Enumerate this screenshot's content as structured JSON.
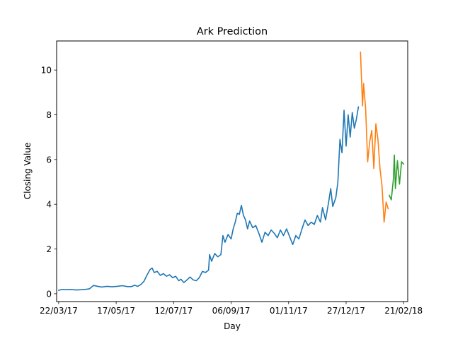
{
  "chart_data": {
    "type": "line",
    "title": "Ark Prediction",
    "xlabel": "Day",
    "ylabel": "Closing Value",
    "x_axis": {
      "type": "date",
      "ticks": [
        "2017-03-22",
        "2017-05-17",
        "2017-07-12",
        "2017-09-06",
        "2017-11-01",
        "2017-12-27",
        "2018-02-21"
      ],
      "tick_labels": [
        "22/03/17",
        "17/05/17",
        "12/07/17",
        "06/09/17",
        "01/11/17",
        "27/12/17",
        "21/02/18"
      ],
      "xlim": [
        "2017-03-20",
        "2018-02-25"
      ]
    },
    "y_axis": {
      "ticks": [
        0,
        2,
        4,
        6,
        8,
        10
      ],
      "tick_labels": [
        "0",
        "2",
        "4",
        "6",
        "8",
        "10"
      ],
      "ylim": [
        -0.35,
        11.3
      ]
    },
    "grid": false,
    "legend": "none",
    "series": [
      {
        "color": "#1f77b4",
        "points": [
          [
            "2017-03-22",
            0.15
          ],
          [
            "2017-03-25",
            0.19
          ],
          [
            "2017-03-29",
            0.18
          ],
          [
            "2017-04-03",
            0.19
          ],
          [
            "2017-04-08",
            0.17
          ],
          [
            "2017-04-13",
            0.18
          ],
          [
            "2017-04-18",
            0.2
          ],
          [
            "2017-04-21",
            0.22
          ],
          [
            "2017-04-23",
            0.3
          ],
          [
            "2017-04-25",
            0.37
          ],
          [
            "2017-04-29",
            0.33
          ],
          [
            "2017-05-03",
            0.3
          ],
          [
            "2017-05-08",
            0.33
          ],
          [
            "2017-05-13",
            0.31
          ],
          [
            "2017-05-18",
            0.33
          ],
          [
            "2017-05-23",
            0.36
          ],
          [
            "2017-05-28",
            0.32
          ],
          [
            "2017-06-01",
            0.32
          ],
          [
            "2017-06-04",
            0.38
          ],
          [
            "2017-06-07",
            0.33
          ],
          [
            "2017-06-10",
            0.41
          ],
          [
            "2017-06-13",
            0.55
          ],
          [
            "2017-06-16",
            0.83
          ],
          [
            "2017-06-19",
            1.08
          ],
          [
            "2017-06-21",
            1.15
          ],
          [
            "2017-06-23",
            0.95
          ],
          [
            "2017-06-26",
            1.0
          ],
          [
            "2017-06-29",
            0.82
          ],
          [
            "2017-07-02",
            0.9
          ],
          [
            "2017-07-05",
            0.78
          ],
          [
            "2017-07-08",
            0.85
          ],
          [
            "2017-07-11",
            0.72
          ],
          [
            "2017-07-14",
            0.78
          ],
          [
            "2017-07-17",
            0.58
          ],
          [
            "2017-07-19",
            0.65
          ],
          [
            "2017-07-22",
            0.5
          ],
          [
            "2017-07-25",
            0.62
          ],
          [
            "2017-07-28",
            0.75
          ],
          [
            "2017-07-31",
            0.62
          ],
          [
            "2017-08-03",
            0.58
          ],
          [
            "2017-08-06",
            0.72
          ],
          [
            "2017-08-09",
            1.0
          ],
          [
            "2017-08-12",
            0.95
          ],
          [
            "2017-08-15",
            1.05
          ],
          [
            "2017-08-16",
            1.75
          ],
          [
            "2017-08-18",
            1.45
          ],
          [
            "2017-08-21",
            1.8
          ],
          [
            "2017-08-24",
            1.65
          ],
          [
            "2017-08-27",
            1.75
          ],
          [
            "2017-08-29",
            2.6
          ],
          [
            "2017-08-31",
            2.3
          ],
          [
            "2017-09-03",
            2.65
          ],
          [
            "2017-09-06",
            2.45
          ],
          [
            "2017-09-08",
            2.9
          ],
          [
            "2017-09-10",
            3.2
          ],
          [
            "2017-09-12",
            3.6
          ],
          [
            "2017-09-14",
            3.55
          ],
          [
            "2017-09-16",
            3.95
          ],
          [
            "2017-09-18",
            3.5
          ],
          [
            "2017-09-20",
            3.3
          ],
          [
            "2017-09-22",
            2.9
          ],
          [
            "2017-09-24",
            3.25
          ],
          [
            "2017-09-27",
            2.95
          ],
          [
            "2017-09-30",
            3.05
          ],
          [
            "2017-10-03",
            2.7
          ],
          [
            "2017-10-06",
            2.3
          ],
          [
            "2017-10-09",
            2.75
          ],
          [
            "2017-10-12",
            2.6
          ],
          [
            "2017-10-15",
            2.85
          ],
          [
            "2017-10-18",
            2.7
          ],
          [
            "2017-10-21",
            2.5
          ],
          [
            "2017-10-24",
            2.85
          ],
          [
            "2017-10-27",
            2.6
          ],
          [
            "2017-10-30",
            2.9
          ],
          [
            "2017-11-02",
            2.55
          ],
          [
            "2017-11-05",
            2.2
          ],
          [
            "2017-11-08",
            2.6
          ],
          [
            "2017-11-11",
            2.45
          ],
          [
            "2017-11-14",
            2.9
          ],
          [
            "2017-11-17",
            3.3
          ],
          [
            "2017-11-20",
            3.05
          ],
          [
            "2017-11-23",
            3.2
          ],
          [
            "2017-11-26",
            3.1
          ],
          [
            "2017-11-29",
            3.5
          ],
          [
            "2017-12-02",
            3.2
          ],
          [
            "2017-12-04",
            3.85
          ],
          [
            "2017-12-07",
            3.3
          ],
          [
            "2017-12-10",
            4.1
          ],
          [
            "2017-12-12",
            4.7
          ],
          [
            "2017-12-14",
            3.9
          ],
          [
            "2017-12-17",
            4.3
          ],
          [
            "2017-12-19",
            5.0
          ],
          [
            "2017-12-21",
            6.9
          ],
          [
            "2017-12-23",
            6.3
          ],
          [
            "2017-12-25",
            8.2
          ],
          [
            "2017-12-27",
            6.6
          ],
          [
            "2017-12-29",
            8.0
          ],
          [
            "2017-12-31",
            7.0
          ],
          [
            "2018-01-02",
            8.1
          ],
          [
            "2018-01-04",
            7.4
          ],
          [
            "2018-01-06",
            7.8
          ],
          [
            "2018-01-08",
            8.35
          ]
        ]
      },
      {
        "color": "#ff7f0e",
        "points": [
          [
            "2018-01-10",
            10.8
          ],
          [
            "2018-01-11",
            9.6
          ],
          [
            "2018-01-12",
            8.4
          ],
          [
            "2018-01-13",
            9.4
          ],
          [
            "2018-01-15",
            8.3
          ],
          [
            "2018-01-17",
            5.9
          ],
          [
            "2018-01-19",
            6.8
          ],
          [
            "2018-01-21",
            7.3
          ],
          [
            "2018-01-23",
            5.6
          ],
          [
            "2018-01-25",
            7.6
          ],
          [
            "2018-01-27",
            6.9
          ],
          [
            "2018-01-29",
            5.6
          ],
          [
            "2018-01-31",
            4.8
          ],
          [
            "2018-02-02",
            3.2
          ],
          [
            "2018-02-04",
            4.1
          ],
          [
            "2018-02-06",
            3.8
          ]
        ]
      },
      {
        "color": "#2ca02c",
        "points": [
          [
            "2018-02-07",
            4.4
          ],
          [
            "2018-02-09",
            4.2
          ],
          [
            "2018-02-11",
            5.1
          ],
          [
            "2018-02-12",
            6.2
          ],
          [
            "2018-02-13",
            4.7
          ],
          [
            "2018-02-15",
            5.95
          ],
          [
            "2018-02-17",
            4.9
          ],
          [
            "2018-02-19",
            5.9
          ],
          [
            "2018-02-21",
            5.8
          ]
        ]
      }
    ]
  }
}
